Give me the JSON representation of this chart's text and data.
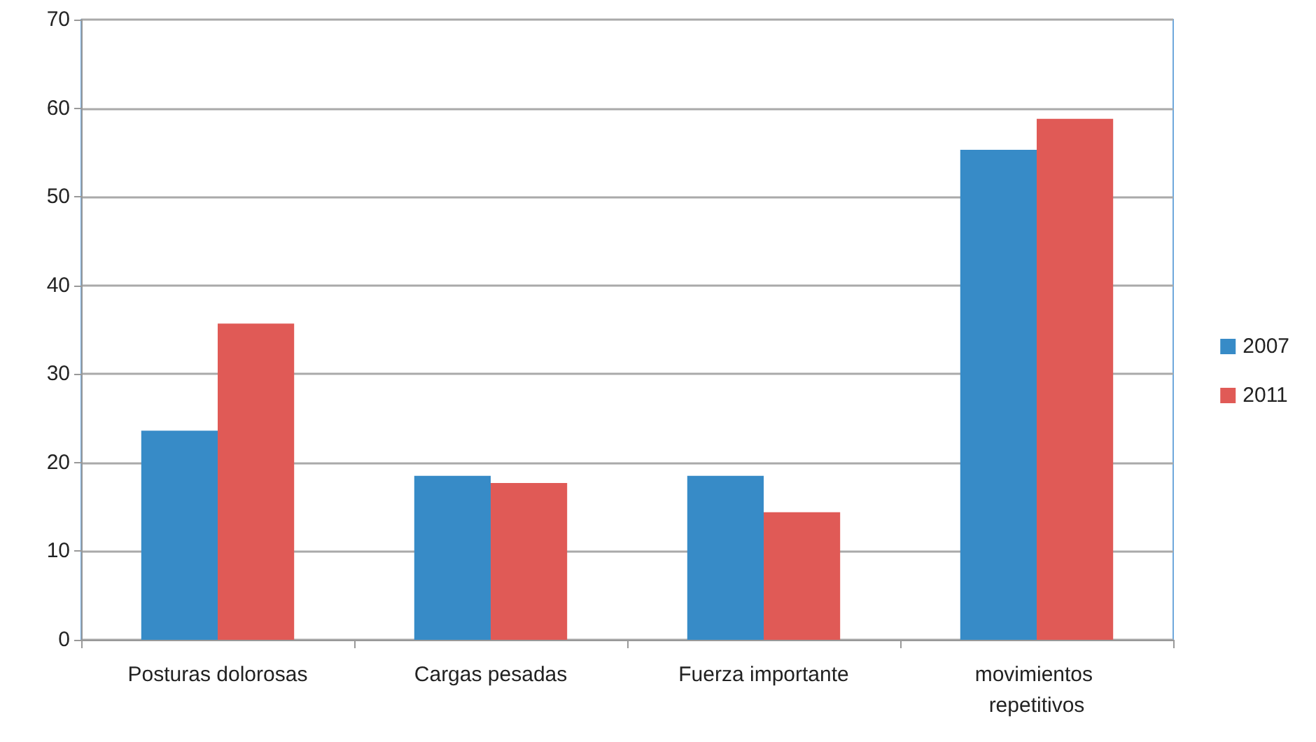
{
  "chart_data": {
    "type": "bar",
    "categories": [
      "Posturas dolorosas",
      "Cargas pesadas",
      "Fuerza importante",
      "movimientos repetitivos"
    ],
    "series": [
      {
        "name": "2007",
        "color": "#378bc7",
        "values": [
          23.6,
          18.5,
          18.5,
          55.3
        ]
      },
      {
        "name": "2011",
        "color": "#e05a56",
        "values": [
          35.7,
          17.7,
          14.4,
          58.8
        ]
      }
    ],
    "ylim": [
      0,
      70
    ],
    "yticks": [
      0,
      10,
      20,
      30,
      40,
      50,
      60,
      70
    ],
    "grid": "y",
    "legend": "right"
  }
}
